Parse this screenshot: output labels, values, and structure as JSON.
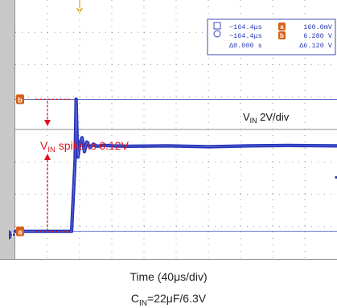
{
  "chart_data": {
    "type": "line",
    "title": "",
    "xlabel": "Time (40μs/div)",
    "ylabel": "",
    "xlim": [
      -240,
      160
    ],
    "x_unit": "μs",
    "ylim": [
      -1.12,
      10.88
    ],
    "y_unit": "V",
    "grid": true,
    "x_divisions": 10,
    "y_divisions": 8,
    "series": [
      {
        "name": "VIN",
        "scale": "2V/div",
        "color": "#1a28b4",
        "x": [
          -240,
          -185,
          -170,
          -165.6,
          -164.4,
          -163.2,
          -162,
          -160,
          -157,
          -154,
          -151,
          -147,
          -143,
          -138,
          -130,
          -120,
          -100,
          -50,
          0,
          50,
          100,
          160
        ],
        "y": [
          0.16,
          0.16,
          0.16,
          3.5,
          6.28,
          4.6,
          3.6,
          4.2,
          4.5,
          3.85,
          4.3,
          4.05,
          4.2,
          4.1,
          4.15,
          4.12,
          4.1,
          4.12,
          4.08,
          4.12,
          4.14,
          4.12
        ]
      }
    ],
    "cursors": {
      "a": {
        "time": "−164.4μs",
        "value": "160.0mV",
        "level": 0.16,
        "color": "#d86018"
      },
      "b": {
        "time": "−164.4μs",
        "value": "6.280 V",
        "level": 6.28,
        "color": "#d86018"
      },
      "delta_time": "Δ0.000 s",
      "delta_value": "Δ6.120 V"
    },
    "trigger_marker": {
      "label": "T",
      "x": -160,
      "color": "#e0a020"
    },
    "channel_marker": {
      "label": "1",
      "level": 0
    },
    "annotations": [
      {
        "text_main": "V",
        "text_sub": "IN",
        "text_rest": " spike is 6.12V",
        "color": "#e0101c"
      },
      {
        "text_main": "V",
        "text_sub": "IN",
        "text_rest": "  2V/div",
        "color": "#111111"
      }
    ]
  },
  "caption": {
    "time_label": "Time (40μs/div)",
    "cap_main": "C",
    "cap_sub": "IN",
    "cap_rest": "=22μF/6.3V"
  }
}
